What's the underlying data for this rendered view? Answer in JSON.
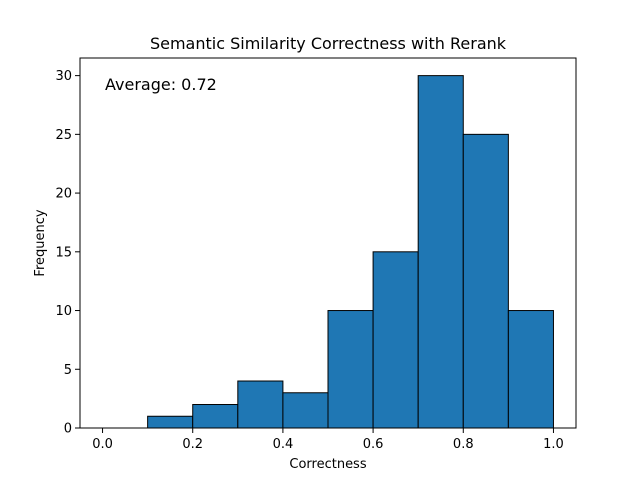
{
  "chart_data": {
    "type": "bar",
    "title": "Semantic Similarity Correctness with Rerank",
    "xlabel": "Correctness",
    "ylabel": "Frequency",
    "annotation": "Average: 0.72",
    "bin_edges": [
      0.0,
      0.1,
      0.2,
      0.3,
      0.4,
      0.5,
      0.6,
      0.7,
      0.8,
      0.9,
      1.0
    ],
    "values": [
      0,
      1,
      2,
      4,
      3,
      10,
      15,
      30,
      25,
      10
    ],
    "xlim": [
      -0.05,
      1.05
    ],
    "ylim": [
      0,
      31.5
    ],
    "xticks": [
      0.0,
      0.2,
      0.4,
      0.6,
      0.8,
      1.0
    ],
    "xtick_labels": [
      "0.0",
      "0.2",
      "0.4",
      "0.6",
      "0.8",
      "1.0"
    ],
    "yticks": [
      0,
      5,
      10,
      15,
      20,
      25,
      30
    ],
    "ytick_labels": [
      "0",
      "5",
      "10",
      "15",
      "20",
      "25",
      "30"
    ],
    "bar_color": "#1f77b4",
    "edge_color": "#000000",
    "grid": false,
    "legend": "none"
  }
}
